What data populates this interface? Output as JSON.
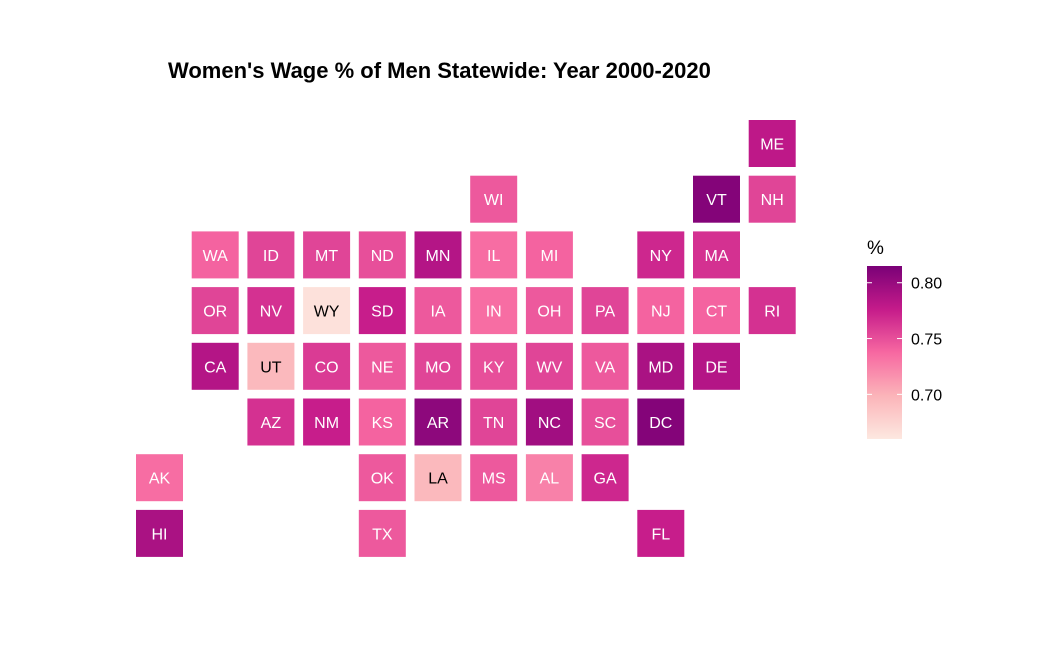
{
  "chart_data": {
    "type": "heatmap",
    "title": "Women's Wage % of Men Statewide: Year 2000-2020",
    "legend_title": "%",
    "legend_ticks": [
      "0.80",
      "0.75",
      "0.70"
    ],
    "legend_tick_values": [
      0.8,
      0.75,
      0.7
    ],
    "legend_range": [
      0.66,
      0.815
    ],
    "color_scale": [
      "#fde8e0",
      "#fbb4b9",
      "#f768a1",
      "#c51b8a",
      "#7a0177"
    ],
    "legend_placement": "right",
    "grid": false,
    "states": [
      {
        "abbr": "ME",
        "value": 0.78,
        "col": 11,
        "row": 0
      },
      {
        "abbr": "WI",
        "value": 0.745,
        "col": 6,
        "row": 1
      },
      {
        "abbr": "VT",
        "value": 0.81,
        "col": 10,
        "row": 1
      },
      {
        "abbr": "NH",
        "value": 0.755,
        "col": 11,
        "row": 1
      },
      {
        "abbr": "WA",
        "value": 0.74,
        "col": 1,
        "row": 2
      },
      {
        "abbr": "ID",
        "value": 0.755,
        "col": 2,
        "row": 2
      },
      {
        "abbr": "MT",
        "value": 0.755,
        "col": 3,
        "row": 2
      },
      {
        "abbr": "ND",
        "value": 0.75,
        "col": 4,
        "row": 2
      },
      {
        "abbr": "MN",
        "value": 0.785,
        "col": 5,
        "row": 2
      },
      {
        "abbr": "IL",
        "value": 0.735,
        "col": 6,
        "row": 2
      },
      {
        "abbr": "MI",
        "value": 0.74,
        "col": 7,
        "row": 2
      },
      {
        "abbr": "NY",
        "value": 0.77,
        "col": 9,
        "row": 2
      },
      {
        "abbr": "MA",
        "value": 0.765,
        "col": 10,
        "row": 2
      },
      {
        "abbr": "OR",
        "value": 0.755,
        "col": 1,
        "row": 3
      },
      {
        "abbr": "NV",
        "value": 0.765,
        "col": 2,
        "row": 3
      },
      {
        "abbr": "WY",
        "value": 0.665,
        "col": 3,
        "row": 3
      },
      {
        "abbr": "SD",
        "value": 0.775,
        "col": 4,
        "row": 3
      },
      {
        "abbr": "IA",
        "value": 0.745,
        "col": 5,
        "row": 3
      },
      {
        "abbr": "IN",
        "value": 0.735,
        "col": 6,
        "row": 3
      },
      {
        "abbr": "OH",
        "value": 0.745,
        "col": 7,
        "row": 3
      },
      {
        "abbr": "PA",
        "value": 0.755,
        "col": 8,
        "row": 3
      },
      {
        "abbr": "NJ",
        "value": 0.74,
        "col": 9,
        "row": 3
      },
      {
        "abbr": "CT",
        "value": 0.74,
        "col": 10,
        "row": 3
      },
      {
        "abbr": "RI",
        "value": 0.765,
        "col": 11,
        "row": 3
      },
      {
        "abbr": "CA",
        "value": 0.785,
        "col": 1,
        "row": 4
      },
      {
        "abbr": "UT",
        "value": 0.695,
        "col": 2,
        "row": 4
      },
      {
        "abbr": "CO",
        "value": 0.76,
        "col": 3,
        "row": 4
      },
      {
        "abbr": "NE",
        "value": 0.745,
        "col": 4,
        "row": 4
      },
      {
        "abbr": "MO",
        "value": 0.755,
        "col": 5,
        "row": 4
      },
      {
        "abbr": "KY",
        "value": 0.75,
        "col": 6,
        "row": 4
      },
      {
        "abbr": "WV",
        "value": 0.755,
        "col": 7,
        "row": 4
      },
      {
        "abbr": "VA",
        "value": 0.745,
        "col": 8,
        "row": 4
      },
      {
        "abbr": "MD",
        "value": 0.79,
        "col": 9,
        "row": 4
      },
      {
        "abbr": "DE",
        "value": 0.785,
        "col": 10,
        "row": 4
      },
      {
        "abbr": "AZ",
        "value": 0.765,
        "col": 2,
        "row": 5
      },
      {
        "abbr": "NM",
        "value": 0.775,
        "col": 3,
        "row": 5
      },
      {
        "abbr": "KS",
        "value": 0.74,
        "col": 4,
        "row": 5
      },
      {
        "abbr": "AR",
        "value": 0.805,
        "col": 5,
        "row": 5
      },
      {
        "abbr": "TN",
        "value": 0.755,
        "col": 6,
        "row": 5
      },
      {
        "abbr": "NC",
        "value": 0.795,
        "col": 7,
        "row": 5
      },
      {
        "abbr": "SC",
        "value": 0.75,
        "col": 8,
        "row": 5
      },
      {
        "abbr": "DC",
        "value": 0.81,
        "col": 9,
        "row": 5
      },
      {
        "abbr": "AK",
        "value": 0.735,
        "col": 0,
        "row": 6
      },
      {
        "abbr": "OK",
        "value": 0.745,
        "col": 4,
        "row": 6
      },
      {
        "abbr": "LA",
        "value": 0.695,
        "col": 5,
        "row": 6
      },
      {
        "abbr": "MS",
        "value": 0.745,
        "col": 6,
        "row": 6
      },
      {
        "abbr": "AL",
        "value": 0.725,
        "col": 7,
        "row": 6
      },
      {
        "abbr": "GA",
        "value": 0.77,
        "col": 8,
        "row": 6
      },
      {
        "abbr": "HI",
        "value": 0.79,
        "col": 0,
        "row": 7
      },
      {
        "abbr": "TX",
        "value": 0.745,
        "col": 4,
        "row": 7
      },
      {
        "abbr": "FL",
        "value": 0.775,
        "col": 9,
        "row": 7
      }
    ]
  }
}
